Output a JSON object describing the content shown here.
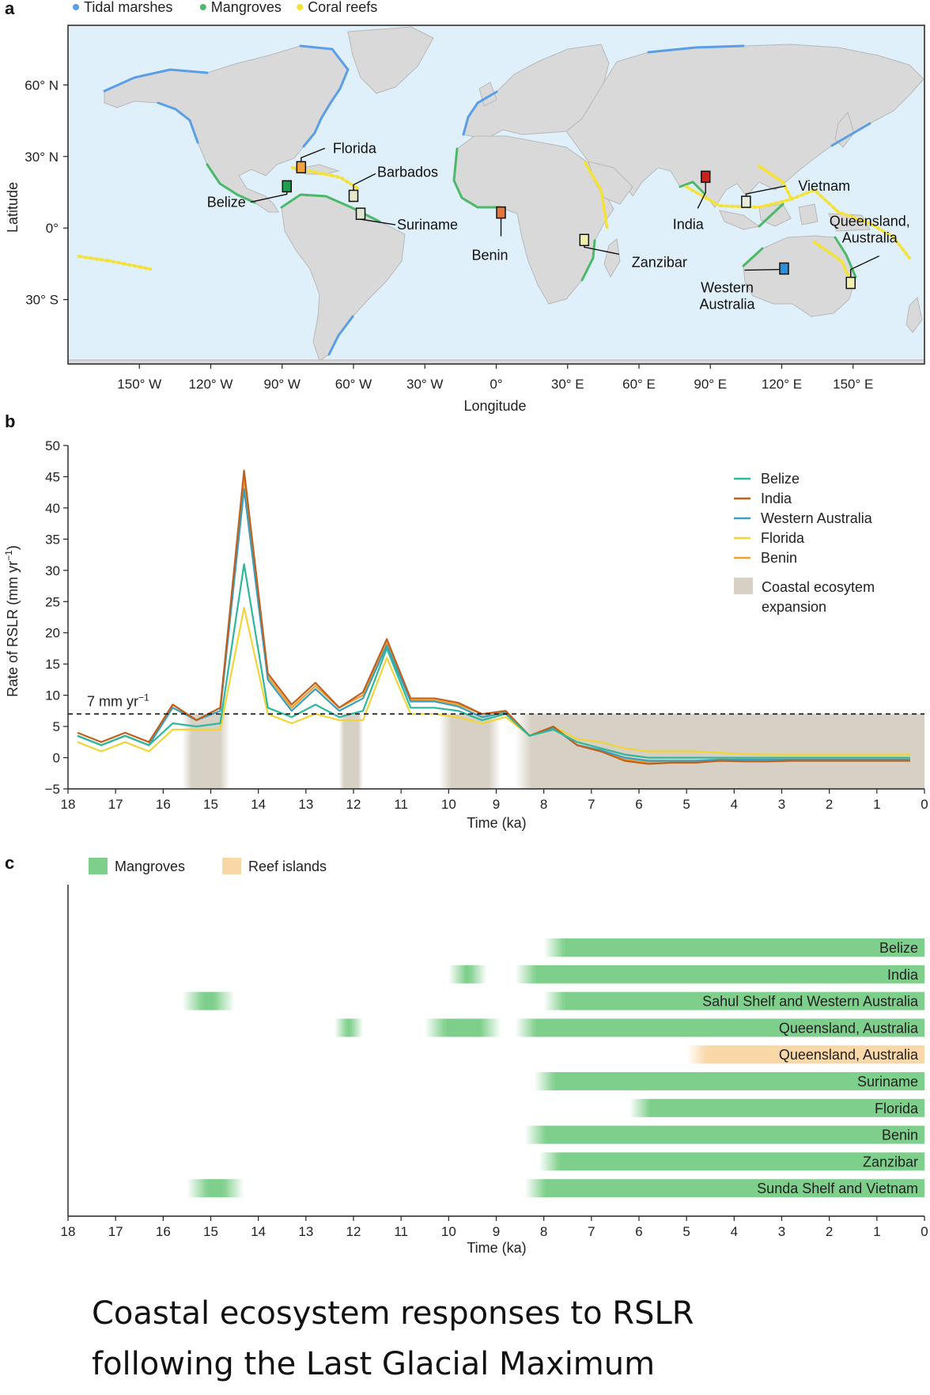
{
  "panel_a": {
    "letter": "a",
    "legend": [
      {
        "label": "Tidal marshes",
        "color": "#5b9ee6"
      },
      {
        "label": "Mangroves",
        "color": "#4cb86a"
      },
      {
        "label": "Coral reefs",
        "color": "#f3e23a"
      }
    ],
    "ylabel": "Latitude",
    "xlabel": "Longitude",
    "lat_ticks": [
      {
        "v": 60,
        "label": "60° N"
      },
      {
        "v": 30,
        "label": "30° N"
      },
      {
        "v": 0,
        "label": "0°"
      },
      {
        "v": -30,
        "label": "30° S"
      }
    ],
    "lon_ticks": [
      {
        "v": -150,
        "label": "150° W"
      },
      {
        "v": -120,
        "label": "120° W"
      },
      {
        "v": -90,
        "label": "90° W"
      },
      {
        "v": -60,
        "label": "60° W"
      },
      {
        "v": -30,
        "label": "30° W"
      },
      {
        "v": 0,
        "label": "0°"
      },
      {
        "v": 30,
        "label": "30° E"
      },
      {
        "v": 60,
        "label": "60° E"
      },
      {
        "v": 90,
        "label": "90° E"
      },
      {
        "v": 120,
        "label": "120° E"
      },
      {
        "v": 150,
        "label": "150° E"
      }
    ],
    "lon_range": [
      -180,
      180
    ],
    "lat_range": [
      -57,
      85
    ],
    "ocean_color": "#dff0fb",
    "land_color": "#d9d9d9",
    "sites": [
      {
        "name": "Florida",
        "lon": -82,
        "lat": 25.5,
        "color": "#f2a23a"
      },
      {
        "name": "Belize",
        "lon": -88,
        "lat": 17.5,
        "color": "#1f9e50"
      },
      {
        "name": "Barbados",
        "lon": -60,
        "lat": 13.5,
        "color": "#e8e8c8"
      },
      {
        "name": "Suriname",
        "lon": -57,
        "lat": 6,
        "color": "#dfe7d2"
      },
      {
        "name": "Benin",
        "lon": 2,
        "lat": 6.5,
        "color": "#e4763d"
      },
      {
        "name": "Zanzibar",
        "lon": 37,
        "lat": -5,
        "color": "#f1f0b0"
      },
      {
        "name": "India",
        "lon": 88,
        "lat": 21.5,
        "color": "#c9231f"
      },
      {
        "name": "Vietnam",
        "lon": 105,
        "lat": 11,
        "color": "#e9ecd8"
      },
      {
        "name": "Western Australia",
        "lon": 121,
        "lat": -17,
        "color": "#2d8fd8"
      },
      {
        "name": "Queensland, Australia",
        "lon": 149,
        "lat": -23,
        "color": "#f1f0b0"
      }
    ]
  },
  "panel_b": {
    "letter": "b",
    "chart_data": {
      "type": "line",
      "xlabel": "Time (ka)",
      "ylabel": "Rate of RSLR (mm yr",
      "ylabel_sup": "−1",
      "ylabel_close": ")",
      "xlim": [
        18,
        0
      ],
      "ylim": [
        -5,
        50
      ],
      "xticks": [
        18,
        17,
        16,
        15,
        14,
        13,
        12,
        11,
        10,
        9,
        8,
        7,
        6,
        5,
        4,
        3,
        2,
        1,
        0
      ],
      "yticks": [
        50,
        45,
        40,
        35,
        30,
        25,
        20,
        15,
        10,
        5,
        0,
        -5
      ],
      "ytick_labels": [
        "50",
        "45",
        "40",
        "35",
        "30",
        "25",
        "20",
        "15",
        "10",
        "5",
        "0",
        "−5"
      ],
      "x": [
        17.8,
        17.3,
        16.8,
        16.3,
        15.8,
        15.3,
        14.8,
        14.3,
        13.8,
        13.3,
        12.8,
        12.3,
        11.8,
        11.3,
        10.8,
        10.3,
        9.8,
        9.3,
        8.8,
        8.3,
        7.8,
        7.3,
        6.8,
        6.3,
        5.8,
        5.3,
        4.8,
        4.3,
        3.8,
        3.3,
        2.8,
        2.3,
        1.8,
        1.3,
        0.8,
        0.3
      ],
      "series": [
        {
          "name": "Belize",
          "color": "#2db89c",
          "values": [
            3.5,
            2,
            3.5,
            2,
            5.5,
            5,
            5.5,
            31,
            8,
            6.5,
            8.5,
            6.5,
            7.5,
            17.5,
            8,
            8,
            7.5,
            6,
            7,
            3.5,
            4.5,
            2.5,
            1.5,
            0.5,
            0,
            0,
            0,
            0,
            0,
            0,
            0,
            0,
            0,
            0,
            0,
            0
          ]
        },
        {
          "name": "India",
          "color": "#c0601e",
          "values": [
            4,
            2.5,
            4,
            2.5,
            8.5,
            6,
            8,
            46,
            13.5,
            8.5,
            12,
            8,
            10.5,
            19,
            9.5,
            9.5,
            8.8,
            7,
            7.5,
            3.5,
            5,
            2,
            1,
            -0.5,
            -1,
            -0.8,
            -0.8,
            -0.5,
            -0.6,
            -0.6,
            -0.5,
            -0.5,
            -0.5,
            -0.5,
            -0.5,
            -0.5
          ]
        },
        {
          "name": "Western Australia",
          "color": "#3a9fbf",
          "values": [
            3.5,
            2,
            3.5,
            2,
            8,
            6,
            7.5,
            43,
            12.5,
            7.5,
            11,
            7.5,
            9.5,
            18,
            9,
            9,
            8.2,
            6.5,
            7.2,
            3.5,
            4.8,
            2,
            1.2,
            0,
            -0.5,
            -0.5,
            -0.5,
            -0.3,
            -0.3,
            -0.3,
            -0.3,
            -0.3,
            -0.3,
            -0.3,
            -0.3,
            -0.3
          ]
        },
        {
          "name": "Florida",
          "color": "#f2d43a",
          "values": [
            2.5,
            1,
            2.5,
            1,
            4.5,
            4.5,
            4.5,
            24,
            7,
            5.5,
            7,
            6,
            6,
            16,
            7,
            7,
            6.5,
            5.5,
            6.5,
            3.5,
            5,
            3,
            2.5,
            1.5,
            1,
            1,
            1,
            0.8,
            0.6,
            0.5,
            0.5,
            0.5,
            0.5,
            0.5,
            0.5,
            0.5
          ]
        },
        {
          "name": "Benin",
          "color": "#f0a030",
          "values": [
            3.5,
            2,
            3.5,
            2,
            8.5,
            6,
            8,
            44.5,
            13,
            8,
            11.5,
            8,
            10,
            18.5,
            9.2,
            9.2,
            8.5,
            7,
            7.3,
            3.5,
            5,
            2,
            1,
            -0.3,
            -0.8,
            -0.6,
            -0.6,
            -0.4,
            -0.4,
            -0.4,
            -0.4,
            -0.4,
            -0.4,
            -0.4,
            -0.4,
            -0.4
          ]
        }
      ],
      "threshold": {
        "value": 7,
        "label": "7 mm yr",
        "label_sup": "−1"
      },
      "expansion": {
        "label_line1": "Coastal ecosytem",
        "label_line2": "expansion",
        "color": "#d7d0c4",
        "bands": [
          [
            15.6,
            14.6
          ],
          [
            12.3,
            11.8
          ],
          [
            10.2,
            8.9
          ],
          [
            8.6,
            0
          ]
        ]
      }
    }
  },
  "panel_c": {
    "letter": "c",
    "chart_data": {
      "type": "bar",
      "xlabel": "Time (ka)",
      "xlim": [
        18,
        0
      ],
      "xticks": [
        18,
        17,
        16,
        15,
        14,
        13,
        12,
        11,
        10,
        9,
        8,
        7,
        6,
        5,
        4,
        3,
        2,
        1,
        0
      ],
      "legend": [
        {
          "label": "Mangroves",
          "color": "#7fcf8c"
        },
        {
          "label": "Reef islands",
          "color": "#f9d7a6"
        }
      ],
      "rows": [
        {
          "label": "Belize",
          "type": "Mangroves",
          "segments": [
            [
              8.0,
              0
            ]
          ]
        },
        {
          "label": "India",
          "type": "Mangroves",
          "segments": [
            [
              10.0,
              9.2
            ],
            [
              8.6,
              0
            ]
          ]
        },
        {
          "label": "Sahul Shelf and Western Australia",
          "type": "Mangroves",
          "segments": [
            [
              15.6,
              14.5
            ],
            [
              8.0,
              0
            ]
          ]
        },
        {
          "label": "Queensland, Australia",
          "type": "Mangroves",
          "segments": [
            [
              12.4,
              11.8
            ],
            [
              10.5,
              8.9
            ],
            [
              8.6,
              0
            ]
          ]
        },
        {
          "label": "Queensland, Australia",
          "type": "Reef islands",
          "segments": [
            [
              5.0,
              0
            ]
          ]
        },
        {
          "label": "Suriname",
          "type": "Mangroves",
          "segments": [
            [
              8.2,
              0
            ]
          ]
        },
        {
          "label": "Florida",
          "type": "Mangroves",
          "segments": [
            [
              6.2,
              0
            ]
          ]
        },
        {
          "label": "Benin",
          "type": "Mangroves",
          "segments": [
            [
              8.4,
              0
            ]
          ]
        },
        {
          "label": "Zanzibar",
          "type": "Mangroves",
          "segments": [
            [
              8.1,
              0
            ]
          ]
        },
        {
          "label": "Sunda Shelf and Vietnam",
          "type": "Mangroves",
          "segments": [
            [
              15.5,
              14.3
            ],
            [
              8.4,
              0
            ]
          ]
        }
      ]
    }
  },
  "caption": {
    "line1": "Coastal ecosystem responses to RSLR",
    "line2": "following the Last Glacial Maximum"
  }
}
